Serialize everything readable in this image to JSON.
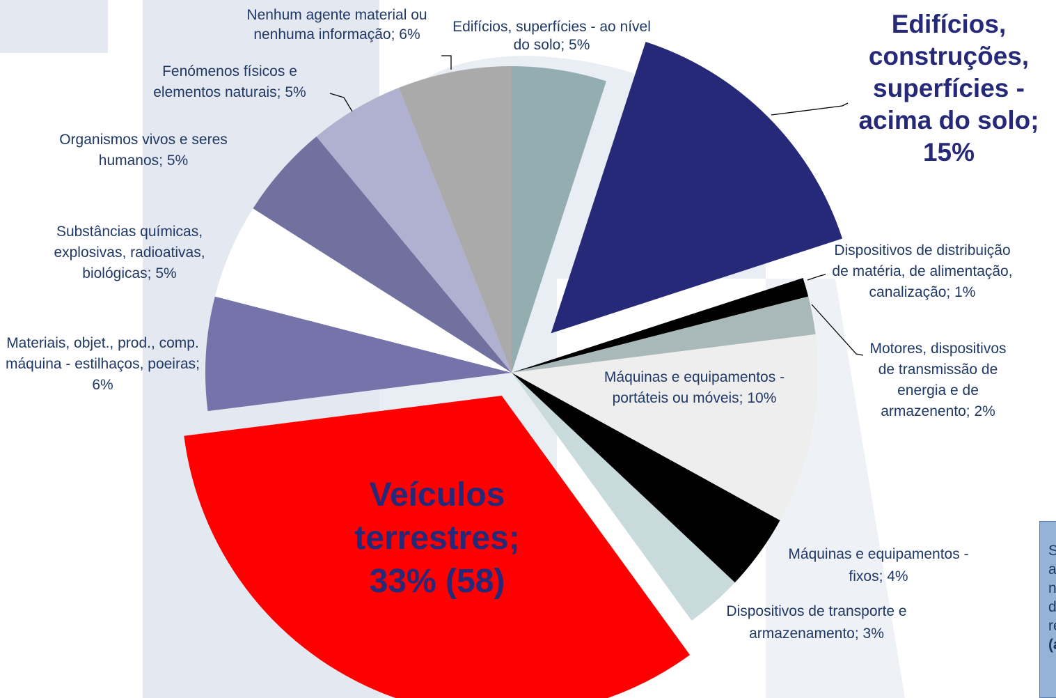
{
  "chart_data": {
    "type": "pie",
    "categories": [
      "Edifícios, superfícies - ao nível do solo;",
      "Edifícios, construções, superfícies - acima do solo;",
      "Dispositivos de distribuição de matéria, de alimentação, canalização;",
      "Motores, dispositivos de transmissão de energia e de armazenento;",
      "Máquinas e equipamentos - portáteis ou móveis;",
      "Máquinas e equipamentos - fixos;",
      "Dispositivos de transporte e armazenamento;",
      "Veículos terrestres;",
      "Materiais, objet., prod., comp. máquina - estilhaços, poeiras;",
      "Substâncias químicas, explosivas, radioativas, biológicas;",
      "Organismos vivos e seres humanos;",
      "Fenómenos físicos e elementos naturais;",
      "Nenhum agente material ou nenhuma informação;"
    ],
    "values": [
      5,
      15,
      1,
      2,
      10,
      4,
      3,
      33,
      6,
      5,
      5,
      5,
      6
    ],
    "value_labels": [
      "5%",
      "15%",
      "1%",
      "2%",
      "10%",
      "4%",
      "3%",
      "33% (58)",
      "6%",
      "5%",
      "5%",
      "5%",
      "6%"
    ],
    "colors": [
      "#93adb0",
      "#262878",
      "#000000",
      "#a9b8b9",
      "#eeeeee",
      "#000000",
      "#c8dadc",
      "#ff0000",
      "#7474ab",
      "#ffffff",
      "#71719f",
      "#b0b0d0",
      "#aaaaaa"
    ],
    "exploded": [
      false,
      true,
      false,
      false,
      false,
      false,
      false,
      true,
      false,
      false,
      false,
      false,
      false
    ]
  },
  "note": {
    "lines": [
      "S",
      "a",
      "n",
      "d",
      "re",
      "(a"
    ]
  }
}
